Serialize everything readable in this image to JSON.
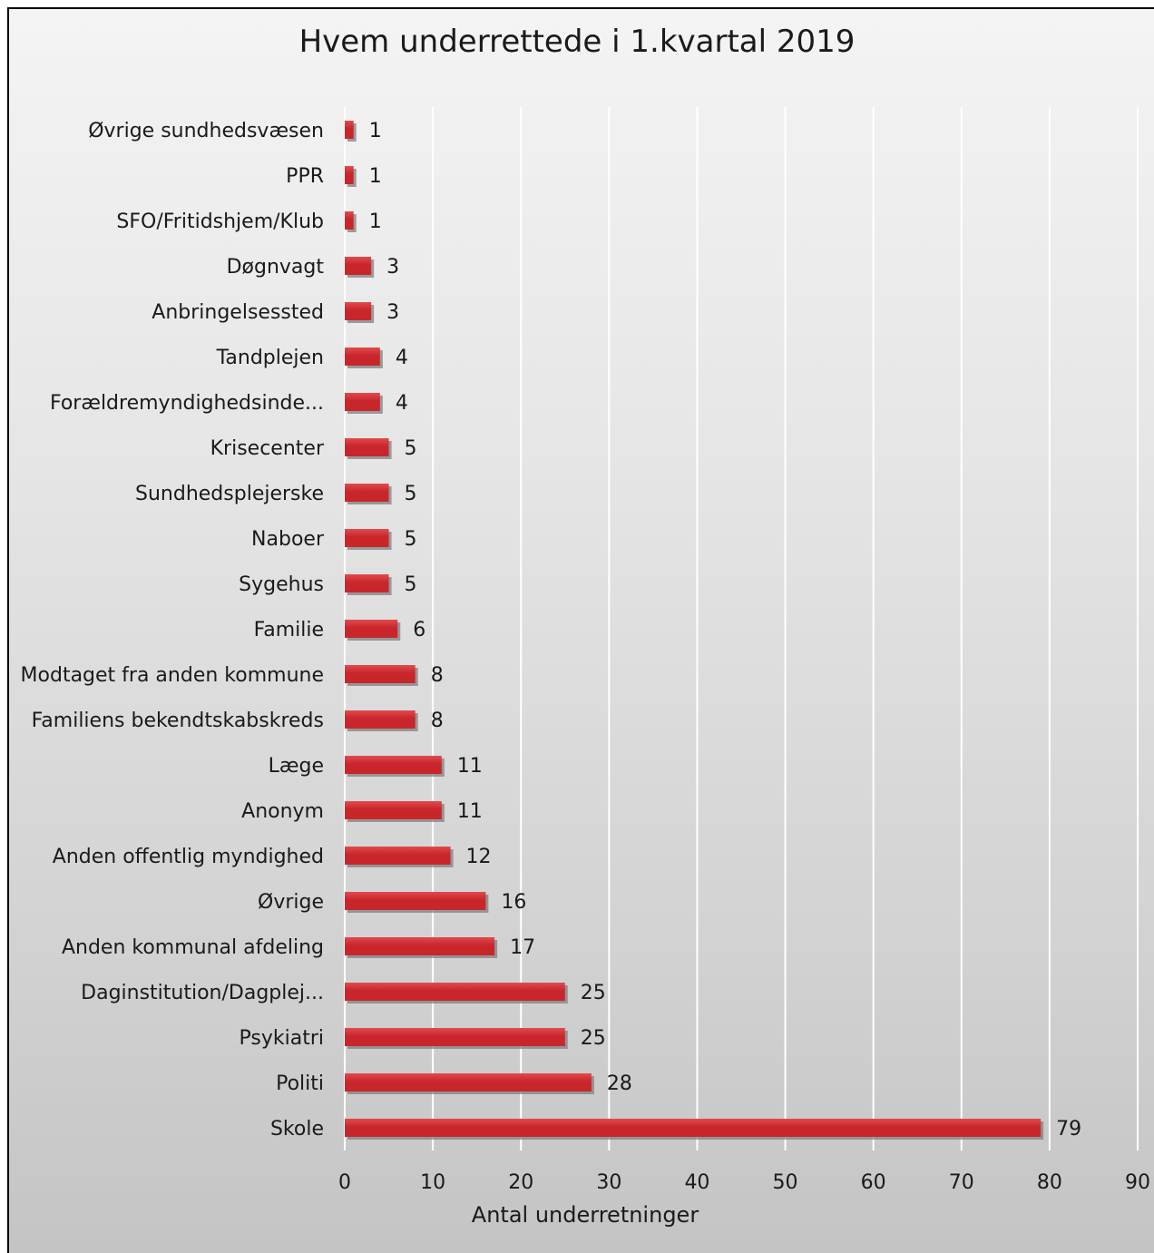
{
  "chart_data": {
    "type": "bar",
    "orientation": "horizontal",
    "title": "Hvem underrettede i 1.kvartal 2019",
    "xlabel": "Antal underretninger",
    "ylabel": "",
    "xlim": [
      0,
      90
    ],
    "xticks": [
      0,
      10,
      20,
      30,
      40,
      50,
      60,
      70,
      80,
      90
    ],
    "grid": true,
    "categories": [
      "Øvrige sundhedsvæsen",
      "PPR",
      "SFO/Fritidshjem/Klub",
      "Døgnvagt",
      "Anbringelsessted",
      "Tandplejen",
      "Forældremyndighedsinde...",
      "Krisecenter",
      "Sundhedsplejerske",
      "Naboer",
      "Sygehus",
      "Familie",
      "Modtaget fra anden kommune",
      "Familiens bekendtskabskreds",
      "Læge",
      "Anonym",
      "Anden offentlig myndighed",
      "Øvrige",
      "Anden kommunal afdeling",
      "Daginstitution/Dagplej...",
      "Psykiatri",
      "Politi",
      "Skole"
    ],
    "values": [
      1,
      1,
      1,
      3,
      3,
      4,
      4,
      5,
      5,
      5,
      5,
      6,
      8,
      8,
      11,
      11,
      12,
      16,
      17,
      25,
      25,
      28,
      79
    ],
    "colors": {
      "bar": "#c8262b",
      "bar_light": "#e04a4e",
      "bar_shadow": "#7f7f7f",
      "grid": "#ffffff"
    }
  }
}
